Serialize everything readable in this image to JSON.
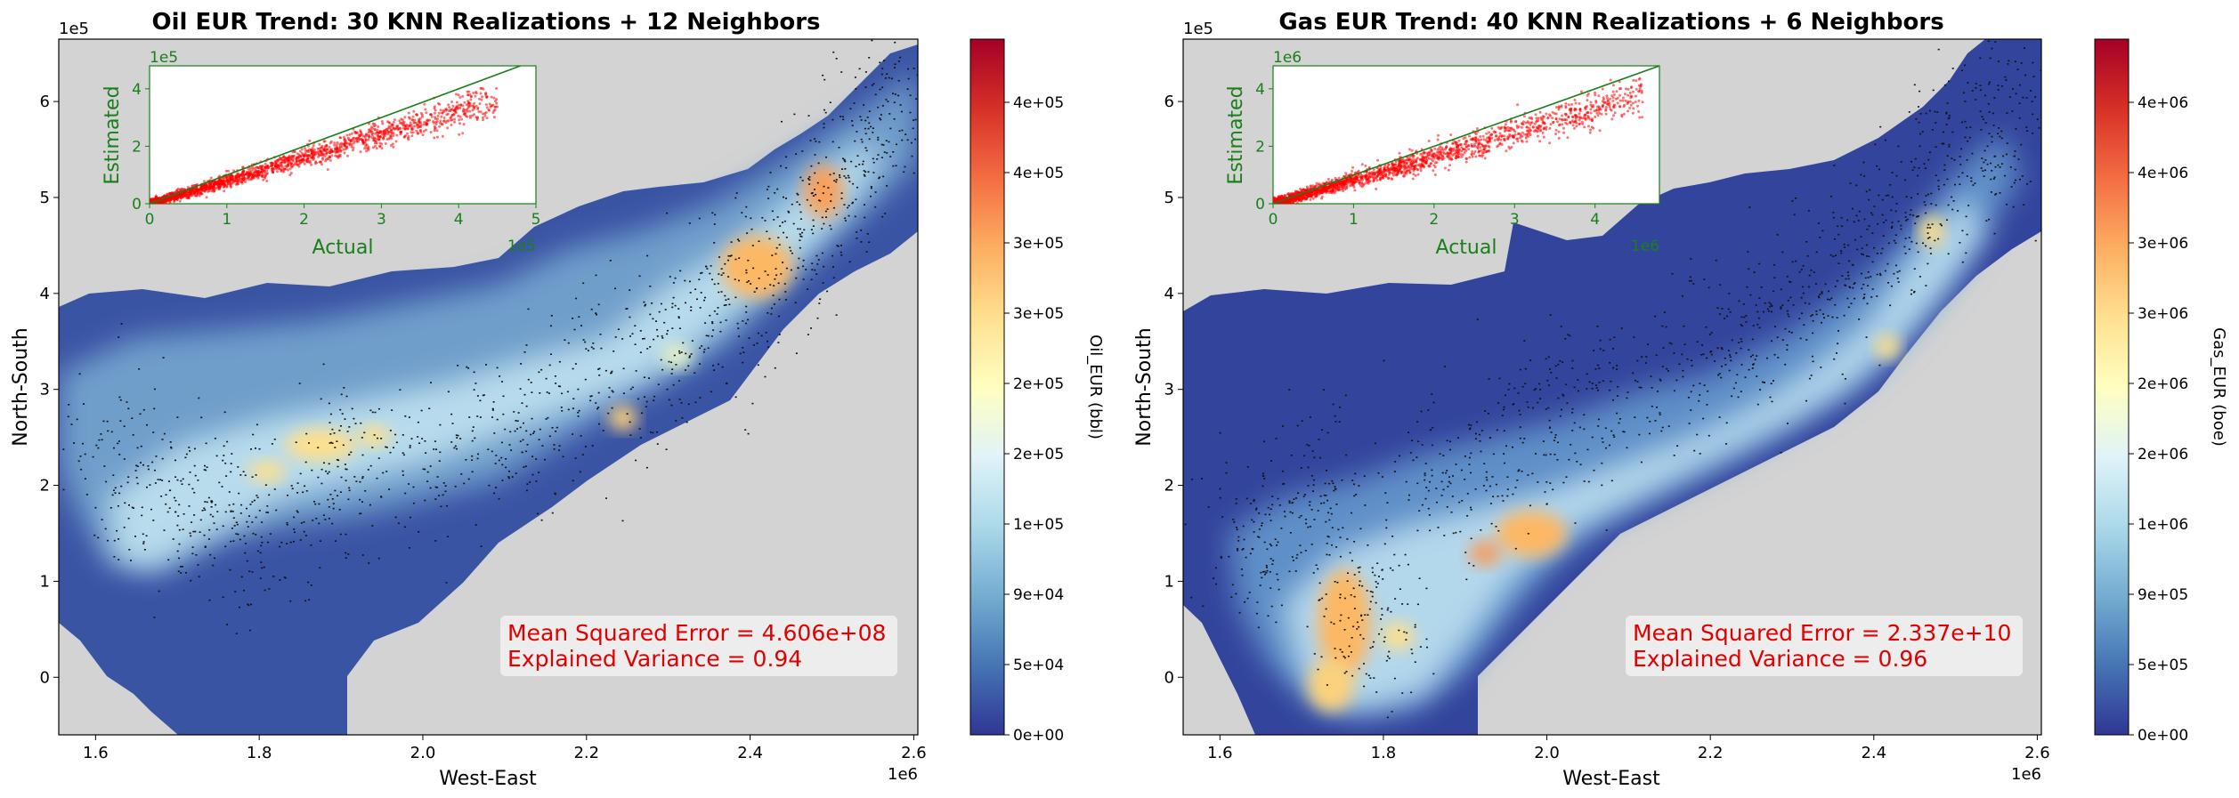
{
  "chart_data": [
    {
      "type": "heatmap",
      "title": "Oil EUR Trend: 30 KNN Realizations + 12 Neighbors",
      "xlabel": "West-East",
      "ylabel": "North-South",
      "x_multiplier": "1e6",
      "y_multiplier": "1e5",
      "xlim": [
        1.555,
        2.605
      ],
      "ylim": [
        -0.6,
        6.65
      ],
      "x_ticks": [
        "1.6",
        "1.8",
        "2.0",
        "2.2",
        "2.4",
        "2.6"
      ],
      "y_ticks": [
        "0",
        "1",
        "2",
        "3",
        "4",
        "5",
        "6"
      ],
      "colorbar": {
        "label": "Oil_EUR (bbl)",
        "colormap": "RdYlBu_r",
        "ticks": [
          "0e+00",
          "5e+04",
          "9e+04",
          "1e+05",
          "2e+05",
          "2e+05",
          "3e+05",
          "3e+05",
          "4e+05",
          "4e+05"
        ]
      },
      "stats": {
        "mse": "Mean Squared Error = 4.606e+08",
        "explained_variance": "Explained Variance  = 0.94"
      },
      "inset": {
        "type": "scatter",
        "xlabel": "Actual",
        "ylabel": "Estimated",
        "x_multiplier": "1e5",
        "y_multiplier": "1e5",
        "xlim": [
          0,
          5
        ],
        "ylim": [
          0,
          4.8
        ],
        "x_ticks": [
          "0",
          "1",
          "2",
          "3",
          "4",
          "5"
        ],
        "y_ticks": [
          "0",
          "2",
          "4"
        ],
        "slope": 0.8,
        "xmax": 4.5,
        "spread": 0.25,
        "point_color": "#ff0000",
        "line_color": "#1a7f1a"
      }
    },
    {
      "type": "heatmap",
      "title": "Gas EUR Trend: 40 KNN Realizations + 6 Neighbors",
      "xlabel": "West-East",
      "ylabel": "North-South",
      "x_multiplier": "1e6",
      "y_multiplier": "1e5",
      "xlim": [
        1.555,
        2.605
      ],
      "ylim": [
        -0.6,
        6.65
      ],
      "x_ticks": [
        "1.6",
        "1.8",
        "2.0",
        "2.2",
        "2.4",
        "2.6"
      ],
      "y_ticks": [
        "0",
        "1",
        "2",
        "3",
        "4",
        "5",
        "6"
      ],
      "colorbar": {
        "label": "Gas_EUR (boe)",
        "colormap": "RdYlBu_r",
        "ticks": [
          "0e+00",
          "5e+05",
          "9e+05",
          "1e+06",
          "2e+06",
          "2e+06",
          "3e+06",
          "3e+06",
          "4e+06",
          "4e+06"
        ]
      },
      "stats": {
        "mse": "Mean Squared Error = 2.337e+10",
        "explained_variance": "Explained Variance  = 0.96"
      },
      "inset": {
        "type": "scatter",
        "xlabel": "Actual",
        "ylabel": "Estimated",
        "x_multiplier": "1e6",
        "y_multiplier": "1e6",
        "xlim": [
          0,
          4.8
        ],
        "ylim": [
          0,
          4.8
        ],
        "x_ticks": [
          "0",
          "1",
          "2",
          "3",
          "4"
        ],
        "y_ticks": [
          "0",
          "2",
          "4"
        ],
        "slope": 0.82,
        "xmax": 4.6,
        "spread": 0.3,
        "point_color": "#ff0000",
        "line_color": "#1a7f1a"
      }
    }
  ]
}
